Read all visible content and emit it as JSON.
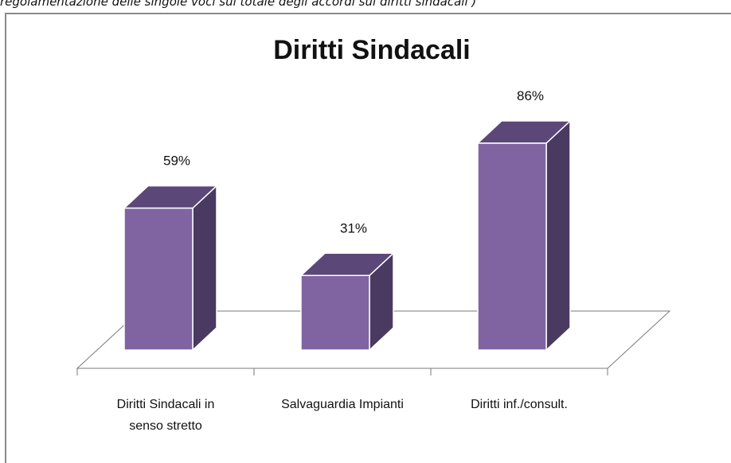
{
  "caption": "regolamentazione delle singole voci sul totale degli accordi sui diritti sindacali )",
  "chart_data": {
    "type": "bar",
    "title": "Diritti Sindacali",
    "categories": [
      [
        "Diritti Sindacali in",
        "senso stretto"
      ],
      [
        "Salvaguardia Impianti"
      ],
      [
        "Diritti inf./consult."
      ]
    ],
    "values": [
      59,
      31,
      86
    ],
    "data_labels": [
      "59%",
      "31%",
      "86%"
    ],
    "ylim": [
      0,
      100
    ],
    "legend": "none",
    "grid": false,
    "colors": {
      "front": "#8064a2",
      "top": "#5c4779",
      "side": "#4a3a61",
      "outline": "#ffffff",
      "floor": "#7a7a7a"
    }
  }
}
